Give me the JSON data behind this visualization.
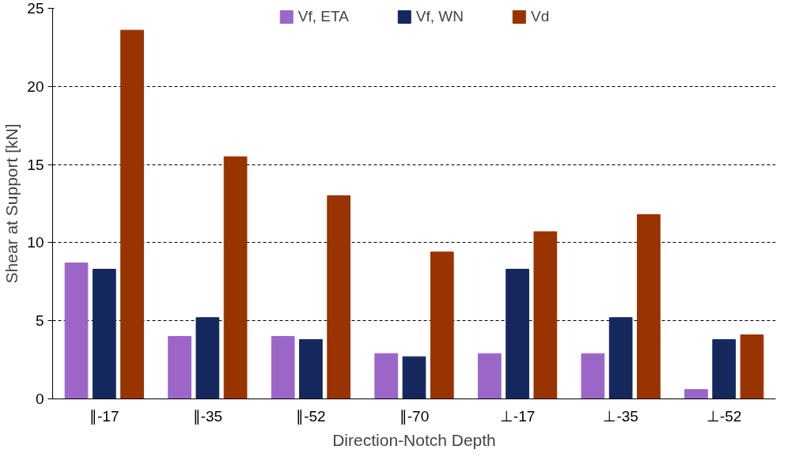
{
  "chart_data": {
    "type": "bar",
    "xlabel": "Direction-Notch Depth",
    "ylabel": "Shear at Support [kN]",
    "categories": [
      "∥-17",
      "∥-35",
      "∥-52",
      "∥-70",
      "⊥-17",
      "⊥-35",
      "⊥-52"
    ],
    "series": [
      {
        "name": "Vf, ETA",
        "color": "#9b66c8",
        "values": [
          8.7,
          4.0,
          4.0,
          2.9,
          2.9,
          2.9,
          0.6
        ]
      },
      {
        "name": "Vf, WN",
        "color": "#14285e",
        "values": [
          8.3,
          5.2,
          3.8,
          2.7,
          8.3,
          5.2,
          3.8
        ]
      },
      {
        "name": "Vd",
        "color": "#993300",
        "values": [
          23.6,
          15.5,
          13.0,
          9.4,
          10.7,
          11.8,
          4.1
        ]
      }
    ],
    "ylim": [
      0,
      25
    ],
    "yticks": [
      0,
      5,
      10,
      15,
      20,
      25
    ],
    "grid": "y",
    "legend": "top"
  }
}
